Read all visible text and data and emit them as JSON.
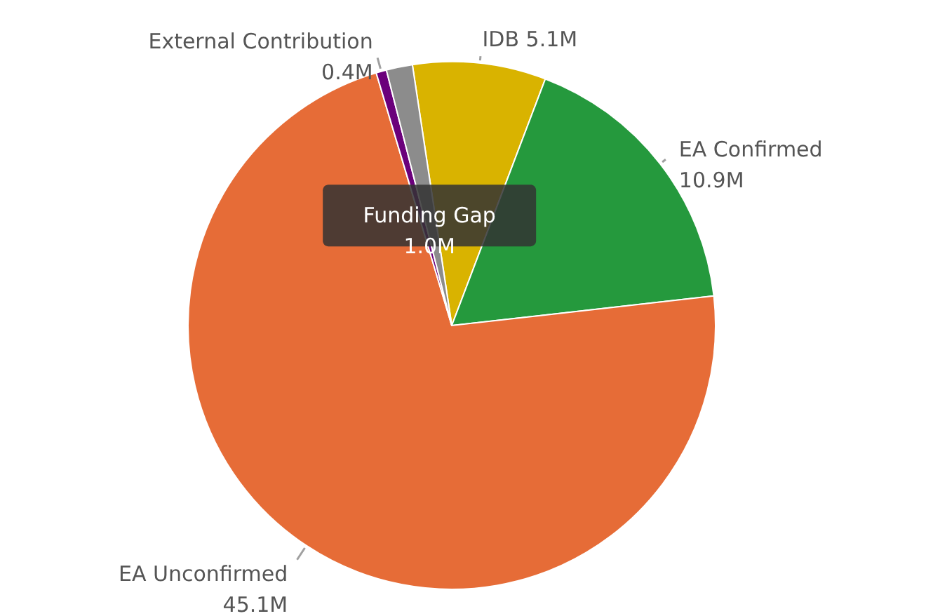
{
  "chart_data": {
    "type": "pie",
    "categories": [
      "IDB",
      "EA Confirmed",
      "EA Unconfirmed",
      "External Contribution",
      "Funding Gap"
    ],
    "values": [
      5.1,
      10.9,
      45.1,
      0.4,
      1.0
    ],
    "value_labels": [
      "5.1M",
      "10.9M",
      "45.1M",
      "0.4M",
      "1.0M"
    ],
    "colors": [
      "#d9b300",
      "#25993d",
      "#e66c37",
      "#6b007b",
      "#8c8c8c"
    ]
  }
}
